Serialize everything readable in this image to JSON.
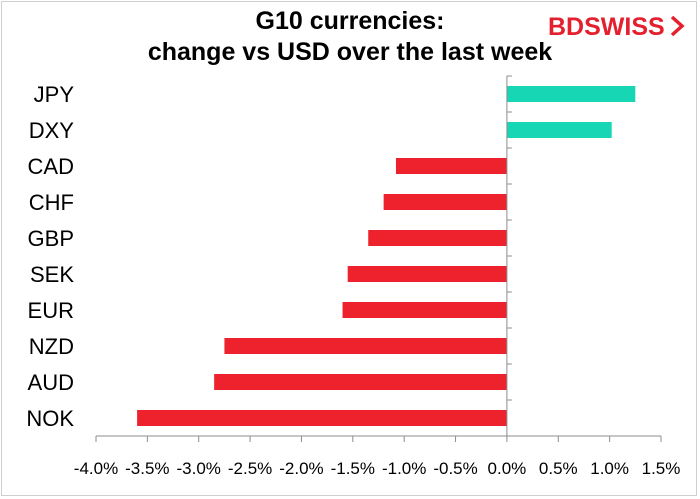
{
  "title_line1": "G10 currencies:",
  "title_line2": "change vs USD over the last week",
  "logo": {
    "text": "BDSWISS",
    "color": "#e4202e"
  },
  "colors": {
    "positive": "#17d6b3",
    "negative": "#ee222d",
    "axis": "#8c8c8c"
  },
  "chart_data": {
    "type": "bar",
    "orientation": "horizontal",
    "title": "G10 currencies: change vs USD over the last week",
    "categories": [
      "JPY",
      "DXY",
      "CAD",
      "CHF",
      "GBP",
      "SEK",
      "EUR",
      "NZD",
      "AUD",
      "NOK"
    ],
    "values": [
      1.25,
      1.02,
      -1.08,
      -1.2,
      -1.35,
      -1.55,
      -1.6,
      -2.75,
      -2.85,
      -3.6
    ],
    "unit": "%",
    "xlim": [
      -4.0,
      1.5
    ],
    "xticks": [
      -4.0,
      -3.5,
      -3.0,
      -2.5,
      -2.0,
      -1.5,
      -1.0,
      -0.5,
      0.0,
      0.5,
      1.0,
      1.5
    ],
    "xtick_labels": [
      "-4.0%",
      "-3.5%",
      "-3.0%",
      "-2.5%",
      "-2.0%",
      "-1.5%",
      "-1.0%",
      "-0.5%",
      "0.0%",
      "0.5%",
      "1.0%",
      "1.5%"
    ],
    "grid": false,
    "legend": "none"
  }
}
